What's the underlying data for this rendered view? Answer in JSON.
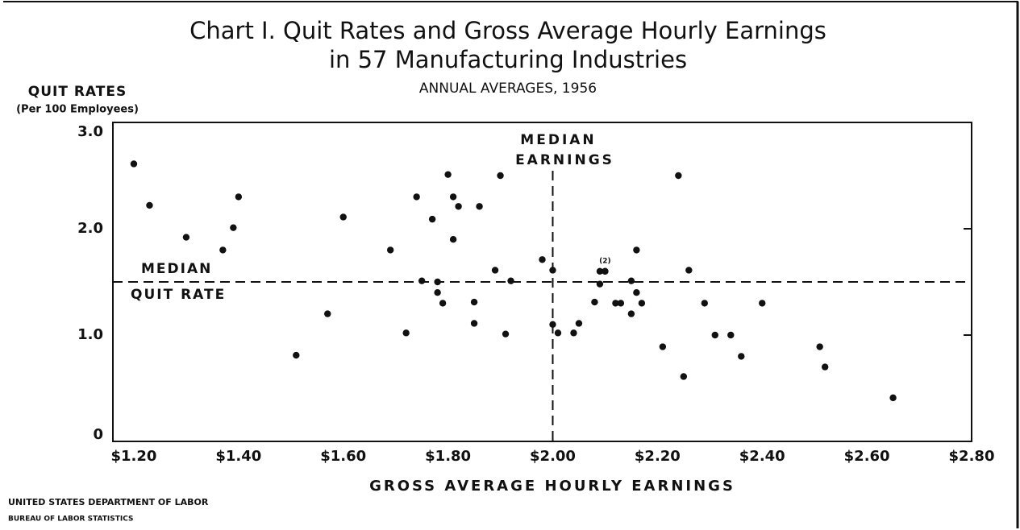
{
  "chart_data": {
    "type": "scatter",
    "title": [
      "Chart I. Quit Rates and Gross Average Hourly Earnings",
      "in 57 Manufacturing Industries"
    ],
    "subtitle": "ANNUAL AVERAGES, 1956",
    "y_label": [
      "QUIT RATES",
      "(Per 100 Employees)"
    ],
    "x_label": "GROSS AVERAGE HOURLY EARNINGS",
    "source": [
      "UNITED STATES DEPARTMENT OF LABOR",
      "BUREAU OF LABOR STATISTICS"
    ],
    "color": "#111111",
    "xlim": [
      1.16,
      2.8
    ],
    "ylim": [
      0,
      3
    ],
    "xticks": [
      {
        "value": 1.2,
        "label": "$1.20"
      },
      {
        "value": 1.4,
        "label": "$1.40"
      },
      {
        "value": 1.6,
        "label": "$1.60"
      },
      {
        "value": 1.8,
        "label": "$1.80"
      },
      {
        "value": 2.0,
        "label": "$2.00"
      },
      {
        "value": 2.2,
        "label": "$2.20"
      },
      {
        "value": 2.4,
        "label": "$2.40"
      },
      {
        "value": 2.6,
        "label": "$2.60"
      },
      {
        "value": 2.8,
        "label": "$2.80"
      }
    ],
    "yticks": [
      0,
      {
        "value": 1,
        "label": "1.0"
      },
      {
        "value": 2,
        "label": "2.0"
      },
      {
        "value": 3,
        "label": "3.0"
      }
    ],
    "reference_lines": {
      "median_x": 2.0,
      "median_y": 1.5,
      "median_x_label": [
        "MEDIAN",
        "EARNINGS"
      ],
      "median_y_label": [
        "MEDIAN",
        "QUIT RATE"
      ]
    },
    "annotation": "(2)",
    "x": [
      1.2,
      1.23,
      1.3,
      1.37,
      1.39,
      1.4,
      1.51,
      1.57,
      1.6,
      1.69,
      1.72,
      1.74,
      1.75,
      1.77,
      1.78,
      1.78,
      1.79,
      1.8,
      1.81,
      1.81,
      1.82,
      1.85,
      1.85,
      1.86,
      1.89,
      1.9,
      1.91,
      1.92,
      1.98,
      2.0,
      2.0,
      2.01,
      2.04,
      2.05,
      2.08,
      2.09,
      2.09,
      2.1,
      2.1,
      2.12,
      2.13,
      2.15,
      2.15,
      2.16,
      2.16,
      2.17,
      2.21,
      2.24,
      2.25,
      2.26,
      2.29,
      2.31,
      2.34,
      2.36,
      2.4,
      2.51,
      2.52
    ],
    "values": [
      2.61,
      2.22,
      1.92,
      1.8,
      2.01,
      2.3,
      0.81,
      1.2,
      2.11,
      1.8,
      1.02,
      2.3,
      1.51,
      2.09,
      1.5,
      1.4,
      1.3,
      2.51,
      2.3,
      1.9,
      2.21,
      1.31,
      1.11,
      2.21,
      1.61,
      2.5,
      1.01,
      1.51,
      1.71,
      1.61,
      1.1,
      1.02,
      1.02,
      1.11,
      1.31,
      1.48,
      1.6,
      1.6,
      1.6,
      1.3,
      1.3,
      1.2,
      1.51,
      1.8,
      1.4,
      1.3,
      0.89,
      2.5,
      0.61,
      1.61,
      1.3,
      1.0,
      1.0,
      0.8,
      1.3,
      0.89,
      0.7
    ],
    "extra_point": {
      "x": 2.65,
      "value": 0.41
    }
  }
}
